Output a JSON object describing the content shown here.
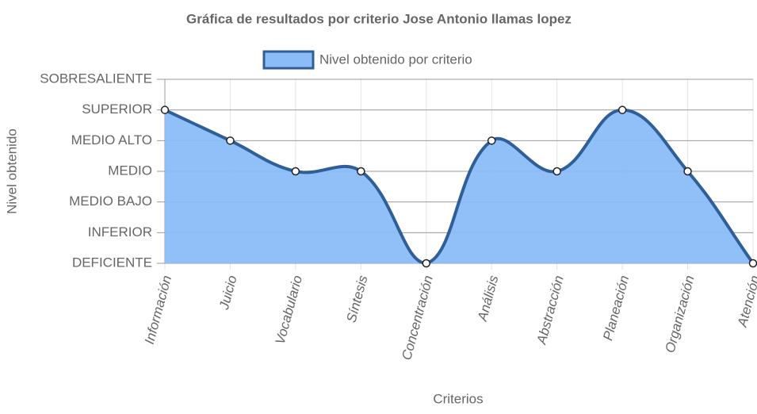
{
  "chart_data": {
    "type": "line",
    "title": "Gráfica de resultados por criterio Jose Antonio llamas lopez",
    "x_label": "Criterios",
    "y_label": "Nivel obtenido",
    "categories": [
      "Información",
      "Juicio",
      "Vocabulario",
      "Síntesis",
      "Concentración",
      "Análisis",
      "Abstracción",
      "Planeación",
      "Organización",
      "Atención"
    ],
    "series": [
      {
        "name": "Nivel obtenido por criterio",
        "color": "#2f5f98",
        "fill": "#8bbcf8",
        "values": [
          5,
          4,
          3,
          3,
          0,
          4,
          3,
          5,
          3,
          0
        ]
      }
    ],
    "ylim": [
      0,
      6
    ],
    "yticks": [
      {
        "value": 0,
        "label": "DEFICIENTE"
      },
      {
        "value": 1,
        "label": "INFERIOR"
      },
      {
        "value": 2,
        "label": "MEDIO BAJO"
      },
      {
        "value": 3,
        "label": "MEDIO"
      },
      {
        "value": 4,
        "label": "MEDIO ALTO"
      },
      {
        "value": 5,
        "label": "SUPERIOR"
      },
      {
        "value": 6,
        "label": "SOBRESALIENTE"
      }
    ],
    "grid": true,
    "legend": "top"
  }
}
